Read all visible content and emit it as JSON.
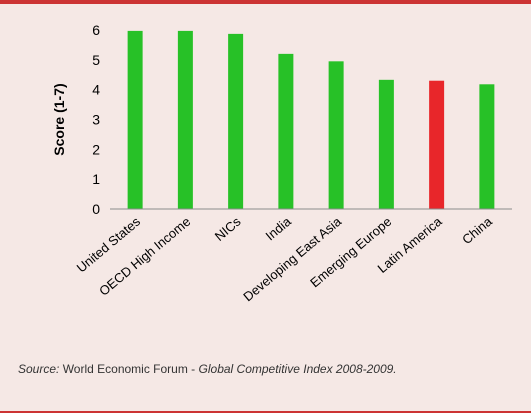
{
  "colors": {
    "background": "#f5e8e5",
    "accent_rule": "#cc3333",
    "bar_default": "#27c127",
    "bar_highlight": "#e8262a",
    "axis": "#8c8c8c"
  },
  "chart_data": {
    "type": "bar",
    "ylabel": "Score (1-7)",
    "ylim": [
      0,
      6
    ],
    "yticks": [
      "0",
      "1",
      "2",
      "3",
      "4",
      "5",
      "6"
    ],
    "grid": false,
    "categories": [
      "United States",
      "OECD High Income",
      "NICs",
      "India",
      "Developing East Asia",
      "Emerging Europe",
      "Latin America",
      "China"
    ],
    "values": [
      5.97,
      5.97,
      5.87,
      5.2,
      4.95,
      4.33,
      4.3,
      4.18
    ],
    "highlight_category": "Latin America"
  },
  "source": {
    "label": "Source:",
    "publisher": " World Economic Forum - ",
    "title": "Global Competitive Index 2008-2009."
  }
}
